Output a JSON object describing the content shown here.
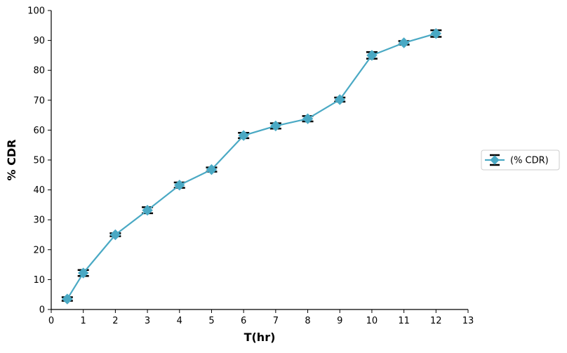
{
  "chart_data": {
    "type": "line",
    "xlabel": "T(hr)",
    "ylabel": "% CDR",
    "xlim": [
      0,
      13
    ],
    "ylim": [
      0,
      100
    ],
    "xticks": [
      0,
      1,
      2,
      3,
      4,
      5,
      6,
      7,
      8,
      9,
      10,
      11,
      12,
      13
    ],
    "yticks": [
      0,
      10,
      20,
      30,
      40,
      50,
      60,
      70,
      80,
      90,
      100
    ],
    "grid": false,
    "legend_position": "right",
    "series": [
      {
        "name": "(% CDR)",
        "color": "#4aa9c4",
        "marker": "diamond",
        "x": [
          0.5,
          1,
          2,
          3,
          4,
          5,
          6,
          7,
          8,
          9,
          10,
          11,
          12
        ],
        "y": [
          3.5,
          12.2,
          25.0,
          33.2,
          41.6,
          46.8,
          58.2,
          61.4,
          63.8,
          70.2,
          85.0,
          89.2,
          92.3
        ],
        "error": [
          0.6,
          1.0,
          0.5,
          1.0,
          0.9,
          0.7,
          0.9,
          0.9,
          0.9,
          0.7,
          1.1,
          0.6,
          1.1
        ]
      }
    ]
  }
}
